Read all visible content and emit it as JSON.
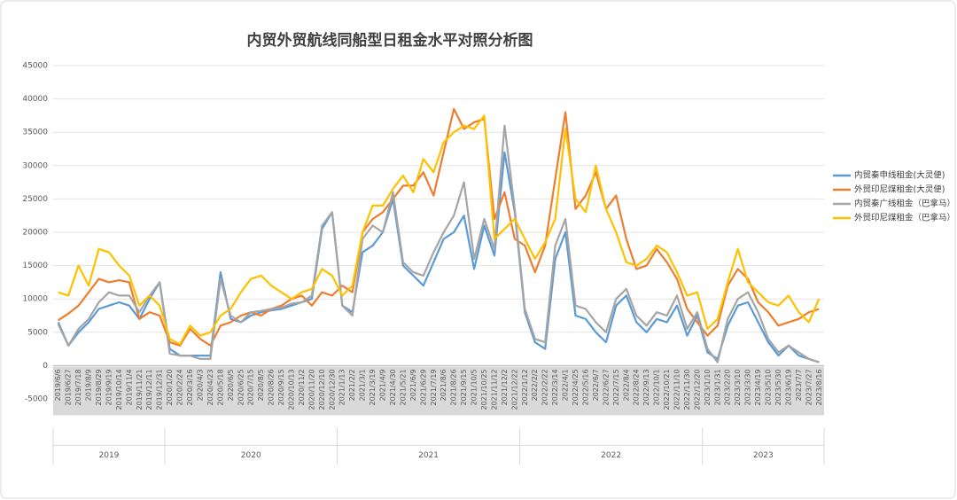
{
  "chart_data": {
    "type": "line",
    "title": "内贸外贸航线同船型日租金水平对照分析图",
    "categories": [
      "2019/6/6",
      "2019/6/27",
      "2019/7/18",
      "2019/8/9",
      "2019/8/29",
      "2019/9/19",
      "2019/10/14",
      "2019/11/4",
      "2019/11/21",
      "2019/12/11",
      "2019/12/31",
      "2020/1/20",
      "2020/2/24",
      "2020/3/16",
      "2020/4/3",
      "2020/4/23",
      "2020/5/18",
      "2020/6/5",
      "2020/6/25",
      "2020/7/15",
      "2020/8/5",
      "2020/8/26",
      "2020/9/15",
      "2020/10/13",
      "2020/11/2",
      "2020/11/20",
      "2020/12/10",
      "2020/12/30",
      "2021/1/13",
      "2021/2/2",
      "2021/3/1",
      "2021/3/19",
      "2021/4/9",
      "2021/4/30",
      "2021/5/21",
      "2021/6/9",
      "2021/6/29",
      "2021/7/19",
      "2021/8/6",
      "2021/8/26",
      "2021/9/15",
      "2021/10/5",
      "2021/10/25",
      "2021/11/12",
      "2021/12/2",
      "2021/12/22",
      "2022/1/12",
      "2022/2/2",
      "2022/2/22",
      "2022/3/14",
      "2022/4/1",
      "2022/4/25",
      "2022/5/16",
      "2022/6/7",
      "2022/6/27",
      "2022/7/15",
      "2022/8/4",
      "2022/8/24",
      "2022/9/13",
      "2022/10/1",
      "2022/10/21",
      "2022/11/10",
      "2022/11/30",
      "2022/12/20",
      "2023/1/10",
      "2023/1/31",
      "2023/2/20",
      "2023/3/10",
      "2023/3/30",
      "2023/4/19",
      "2023/5/10",
      "2023/5/30",
      "2023/6/19",
      "2023/7/7",
      "2023/7/27",
      "2023/8/16"
    ],
    "years": [
      "2019",
      "2020",
      "2021",
      "2022",
      "2023"
    ],
    "series": [
      {
        "name": "内贸秦申线租金(大灵便)",
        "color": "#5b9bd5",
        "values": [
          6500,
          3000,
          5000,
          6500,
          8500,
          9000,
          9500,
          9000,
          7000,
          10000,
          12500,
          2500,
          1500,
          1500,
          1500,
          1500,
          14000,
          7000,
          6500,
          7500,
          8000,
          8300,
          8500,
          9000,
          9500,
          10000,
          20500,
          23000,
          9000,
          8000,
          17000,
          18000,
          20000,
          25000,
          15000,
          13500,
          12000,
          15500,
          19000,
          20000,
          22500,
          14500,
          21000,
          16500,
          32000,
          23000,
          8000,
          3500,
          2500,
          16000,
          20000,
          7500,
          7000,
          5000,
          3500,
          9000,
          10500,
          6500,
          5000,
          7000,
          6500,
          9000,
          4500,
          7500,
          2000,
          1000,
          6000,
          9000,
          9500,
          6500,
          3500,
          1500,
          3000,
          1500,
          1000,
          500
        ]
      },
      {
        "name": "外贸印尼煤租金(大灵便)",
        "color": "#ed7d31",
        "values": [
          6800,
          7800,
          9000,
          11000,
          13000,
          12500,
          12800,
          12500,
          7000,
          8000,
          7500,
          3500,
          3000,
          5500,
          4000,
          3000,
          6000,
          6500,
          7500,
          8000,
          7500,
          8500,
          9000,
          10000,
          10500,
          9000,
          11000,
          10500,
          12000,
          11000,
          20000,
          22000,
          23000,
          25000,
          27000,
          27000,
          29000,
          25500,
          32000,
          38500,
          35500,
          36500,
          37000,
          22000,
          26000,
          19000,
          18000,
          14000,
          18000,
          28000,
          38000,
          23500,
          25500,
          29000,
          23500,
          25500,
          19000,
          14500,
          15000,
          17500,
          15500,
          13000,
          8500,
          6500,
          4500,
          6000,
          12000,
          14500,
          13000,
          9500,
          8000,
          6000,
          6500,
          7000,
          8000,
          8500
        ]
      },
      {
        "name": "内贸秦广线租金（巴拿马）",
        "color": "#a5a5a5",
        "values": [
          6200,
          3000,
          5500,
          7000,
          9500,
          11000,
          10500,
          10500,
          8000,
          10500,
          12500,
          1800,
          1500,
          1500,
          1000,
          1000,
          13000,
          7500,
          6500,
          8000,
          8200,
          8500,
          8700,
          9300,
          9500,
          10500,
          21000,
          23000,
          9000,
          7500,
          19000,
          21000,
          20000,
          26000,
          15500,
          14000,
          13500,
          17000,
          20000,
          22500,
          27500,
          16000,
          22000,
          17500,
          36000,
          23500,
          8500,
          4000,
          3500,
          18000,
          22000,
          9000,
          8500,
          6500,
          5000,
          10000,
          11500,
          7500,
          6000,
          8000,
          7500,
          10500,
          5500,
          8000,
          2500,
          500,
          7000,
          10000,
          11000,
          8000,
          4000,
          2000,
          3000,
          2000,
          1000,
          500
        ]
      },
      {
        "name": "外贸印尼煤租金（巴拿马）",
        "color": "#ffc000",
        "values": [
          11000,
          10500,
          15000,
          12000,
          17500,
          17000,
          15000,
          13500,
          9000,
          10500,
          9000,
          4000,
          3200,
          6000,
          4500,
          5000,
          7500,
          8500,
          11000,
          13000,
          13500,
          12000,
          11000,
          10000,
          11000,
          11500,
          14500,
          13500,
          10500,
          12000,
          20000,
          24000,
          24000,
          26500,
          28500,
          26000,
          31000,
          29000,
          33500,
          35000,
          36000,
          35500,
          37500,
          19000,
          20500,
          22000,
          19000,
          16000,
          18500,
          22000,
          35500,
          25000,
          23000,
          30000,
          23500,
          20000,
          15500,
          15000,
          16000,
          18000,
          17000,
          14000,
          10500,
          11000,
          5500,
          7000,
          12500,
          17500,
          12500,
          11000,
          9500,
          9000,
          10500,
          8000,
          6500,
          10000
        ]
      }
    ],
    "ylim": [
      -5000,
      45000
    ],
    "yticks": [
      -5000,
      0,
      5000,
      10000,
      15000,
      20000,
      25000,
      30000,
      35000,
      40000,
      45000
    ],
    "grid": true,
    "legend": "right"
  }
}
